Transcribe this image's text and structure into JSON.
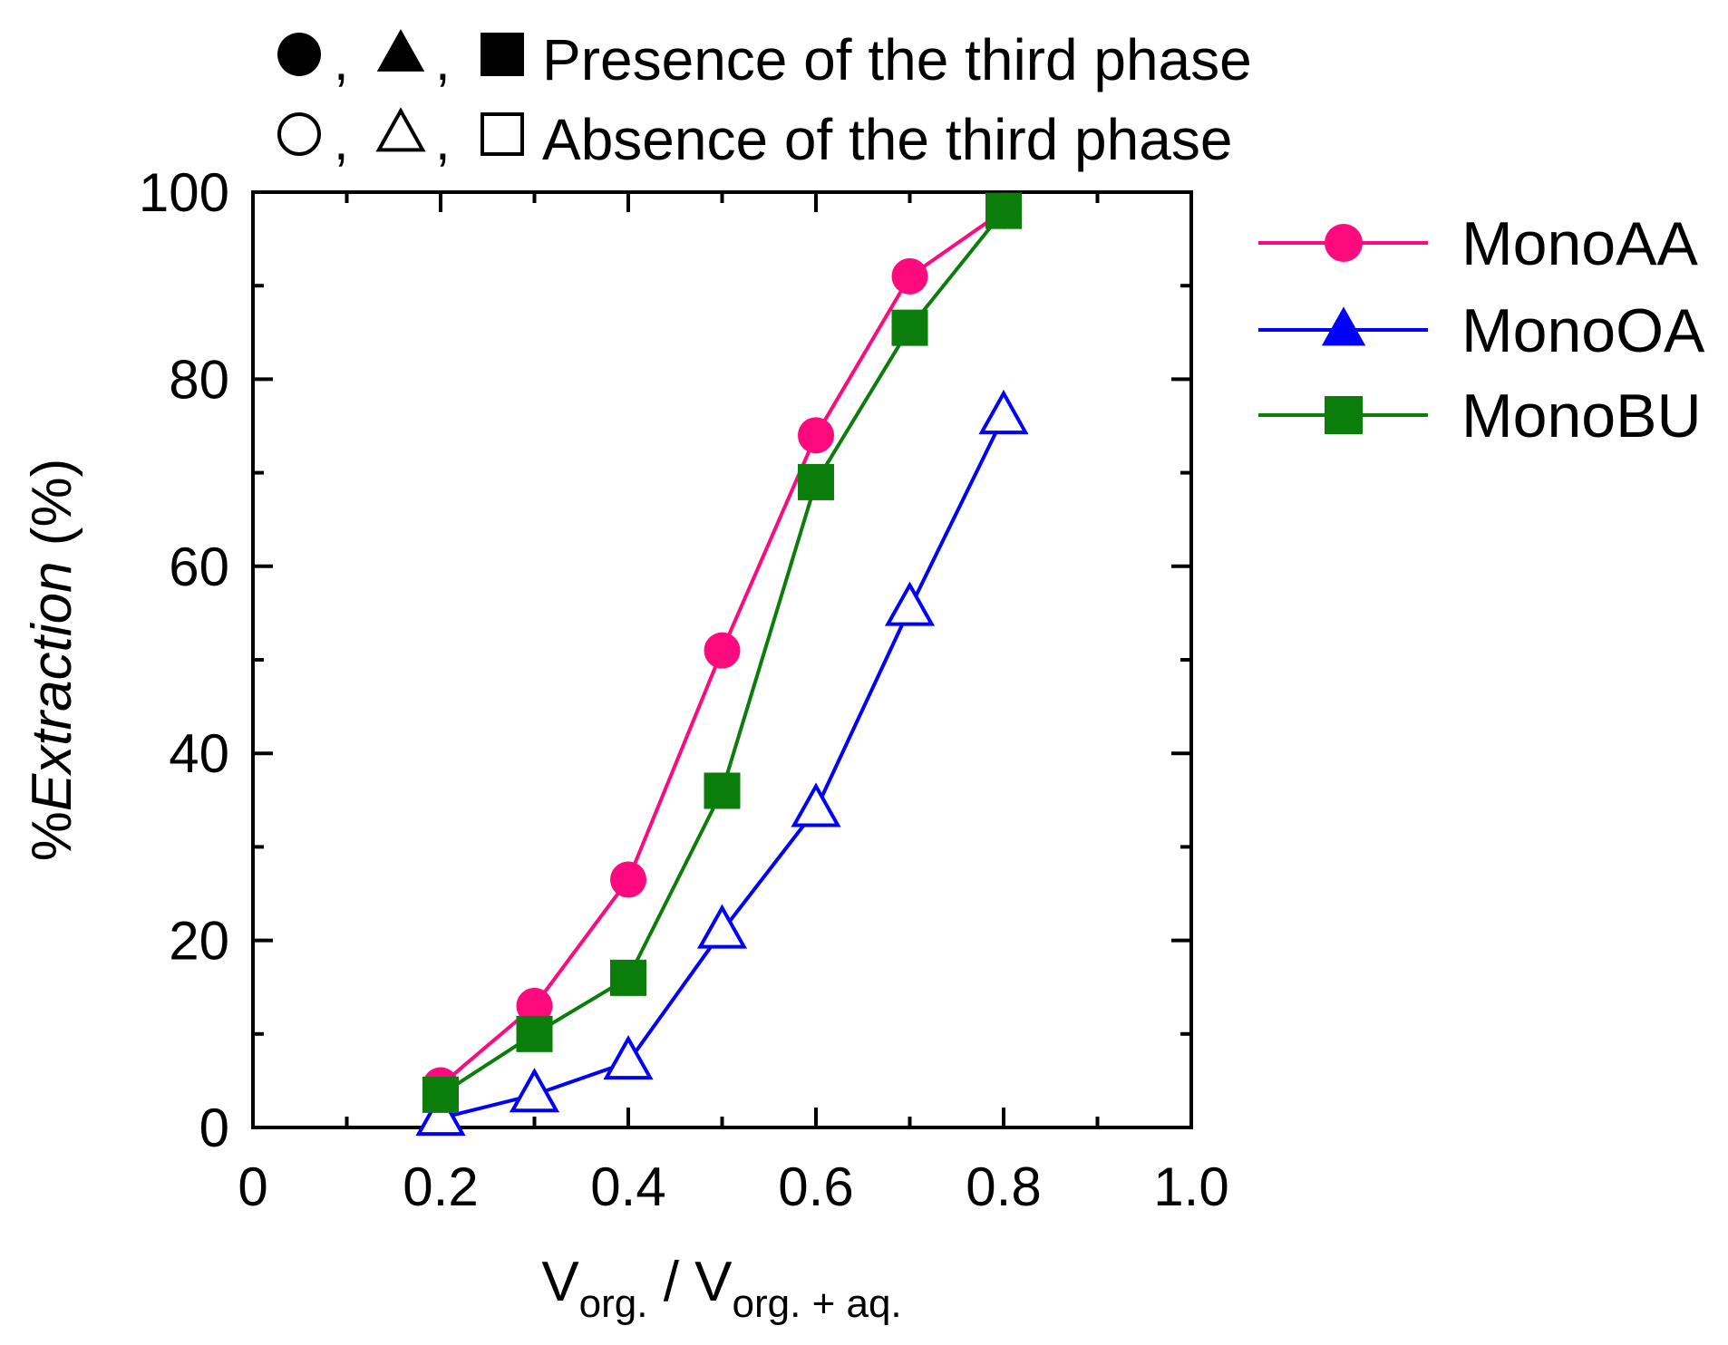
{
  "chart_data": {
    "type": "line",
    "title": "",
    "xlabel": "V",
    "xlabel_sub1": "org.",
    "xlabel_sep": " / V",
    "xlabel_sub2": "org. + aq.",
    "ylabel_prefix": "%",
    "ylabel_italic": "Extraction",
    "ylabel_suffix": " (%)",
    "xlim": [
      0,
      1.0
    ],
    "ylim": [
      0,
      100
    ],
    "x_ticks": [
      0,
      0.2,
      0.4,
      0.6,
      0.8,
      1.0
    ],
    "x_tick_labels": [
      "0",
      "0.2",
      "0.4",
      "0.6",
      "0.8",
      "1.0"
    ],
    "x_minor_ticks": [
      0.1,
      0.3,
      0.5,
      0.7,
      0.9
    ],
    "y_ticks": [
      0,
      20,
      40,
      60,
      80,
      100
    ],
    "y_tick_labels": [
      "0",
      "20",
      "40",
      "60",
      "80",
      "100"
    ],
    "y_minor_ticks": [
      10,
      30,
      50,
      70,
      90
    ],
    "grid": false,
    "legend_position": "right",
    "annotations": {
      "filled": {
        "symbols": [
          "circle",
          "triangle",
          "square"
        ],
        "separator": ",",
        "text": "Presence of the third phase"
      },
      "open": {
        "symbols": [
          "circle",
          "triangle",
          "square"
        ],
        "separator": ",",
        "text": "Absence of the third phase"
      }
    },
    "series": [
      {
        "name": "MonoAA",
        "color": "#ff0a7e",
        "marker": "circle",
        "x": [
          0.2,
          0.3,
          0.4,
          0.5,
          0.6,
          0.7,
          0.8
        ],
        "y": [
          4.5,
          13,
          26.5,
          51,
          74,
          91,
          98
        ],
        "filled": [
          true,
          true,
          true,
          true,
          true,
          true,
          true
        ]
      },
      {
        "name": "MonoOA",
        "color": "#0000ff",
        "marker": "triangle",
        "x": [
          0.2,
          0.3,
          0.4,
          0.5,
          0.6,
          0.7,
          0.8
        ],
        "y": [
          1,
          3.5,
          7,
          21,
          34,
          55.5,
          76
        ],
        "filled": [
          false,
          false,
          false,
          false,
          false,
          false,
          false
        ]
      },
      {
        "name": "MonoBU",
        "color": "#0a7d0a",
        "marker": "square",
        "x": [
          0.2,
          0.3,
          0.4,
          0.5,
          0.6,
          0.7,
          0.8
        ],
        "y": [
          3.5,
          10,
          16,
          36,
          69,
          85.5,
          98
        ],
        "filled": [
          true,
          true,
          true,
          true,
          true,
          true,
          true
        ]
      }
    ]
  }
}
